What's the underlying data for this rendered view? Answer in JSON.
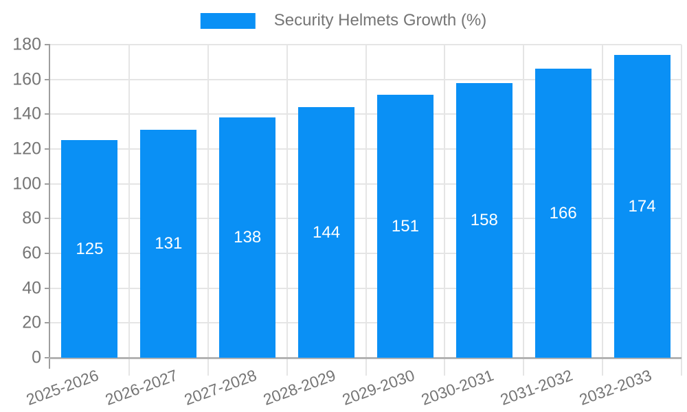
{
  "chart_data": {
    "type": "bar",
    "title": "",
    "legend": "Security Helmets Growth (%)",
    "legend_position": "top-center",
    "categories": [
      "2025-2026",
      "2026-2027",
      "2027-2028",
      "2028-2029",
      "2029-2030",
      "2030-2031",
      "2031-2032",
      "2032-2033"
    ],
    "series": [
      {
        "name": "Security Helmets Growth (%)",
        "values": [
          125,
          131,
          138,
          144,
          151,
          158,
          166,
          174
        ]
      }
    ],
    "value_labels": [
      125,
      131,
      138,
      144,
      151,
      158,
      166,
      174
    ],
    "value_label_position": "inside-middle",
    "xlabel": "",
    "ylabel": "",
    "ylim": [
      0,
      180
    ],
    "yticks": [
      0,
      20,
      40,
      60,
      80,
      100,
      120,
      140,
      160,
      180
    ],
    "grid": true,
    "x_label_rotation_deg": -20,
    "colors": {
      "bar": "#0a90f5",
      "grid": "#e5e5e5",
      "axis": "#9e9e9e",
      "x_axis": "#b2b2b2",
      "tick_text": "#757575",
      "value_text": "#ffffff",
      "background": "#ffffff"
    }
  }
}
